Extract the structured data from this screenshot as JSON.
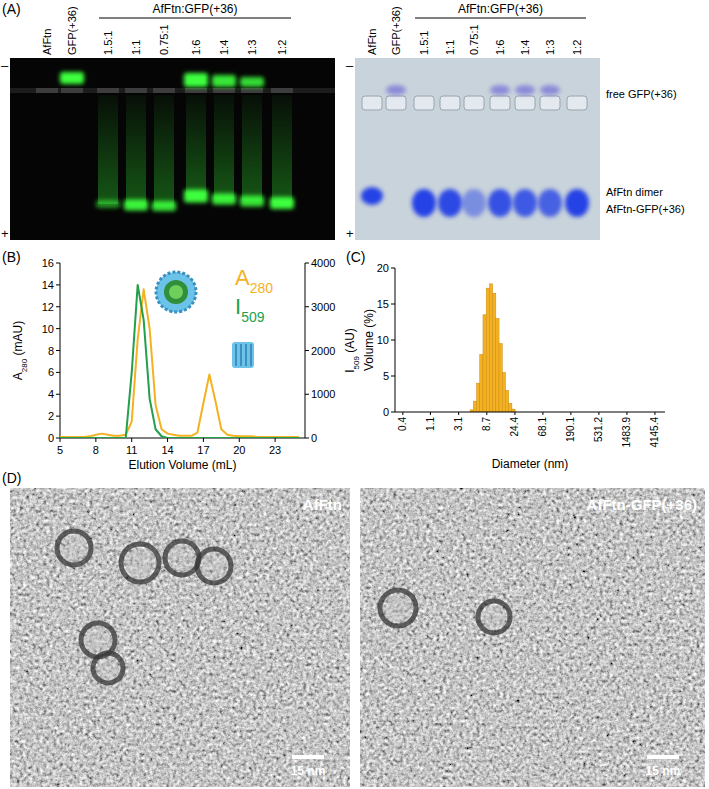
{
  "panel_labels": [
    "(A)",
    "(B)",
    "(C)",
    "(D)"
  ],
  "gels": {
    "lanes": [
      "AfFtn",
      "GFP(+36)",
      "1.5:1",
      "1:1",
      "0.75:1",
      "1:6",
      "1:4",
      "1:3",
      "1:2"
    ],
    "group_label": "AfFtn:GFP(+36)",
    "poles": [
      "–",
      "+"
    ],
    "band_labels": [
      "free GFP(+36)",
      "AfFtn dimer",
      "AfFtn-GFP(+36)"
    ]
  },
  "chart_data": [
    {
      "type": "line",
      "x_label": "Elution Volume (mL)",
      "y_label": "A280 (mAU)",
      "y2_label": "I509 (AU)",
      "x": [
        5,
        5.5,
        6,
        6.5,
        7,
        7.5,
        8,
        8.5,
        9,
        9.5,
        10,
        10.5,
        11,
        11.5,
        12,
        12.5,
        13,
        13.5,
        14,
        14.5,
        15,
        15.5,
        16,
        16.5,
        17,
        17.5,
        18,
        18.5,
        19,
        19.5,
        20,
        20.5,
        21,
        21.5,
        22,
        22.5,
        23,
        23.5,
        24,
        24.5,
        25
      ],
      "series": [
        {
          "name": "A280",
          "color": "#f4b223",
          "values": [
            0.1,
            0.1,
            0.1,
            0.1,
            0.1,
            0.15,
            0.3,
            0.4,
            0.3,
            0.2,
            0.2,
            0.3,
            1.5,
            9.0,
            13.6,
            10.0,
            3.0,
            0.8,
            0.4,
            0.3,
            0.2,
            0.2,
            0.2,
            0.5,
            3.2,
            5.8,
            3.4,
            0.8,
            0.3,
            0.2,
            0.15,
            0.15,
            0.15,
            0.1,
            0.1,
            0.1,
            0.1,
            0.1,
            0.1,
            0.1,
            0.1
          ]
        },
        {
          "name": "I509",
          "color": "#22a04b",
          "axis": "y2",
          "values": [
            0,
            0,
            0,
            0,
            0,
            0,
            0,
            0,
            0,
            0,
            0,
            0,
            1500,
            3500,
            2700,
            900,
            200,
            40,
            0,
            0,
            0,
            0,
            0,
            0,
            0,
            0,
            0,
            0,
            0,
            0,
            0,
            0,
            0,
            0,
            0,
            0,
            0,
            0,
            0,
            0,
            0
          ]
        }
      ],
      "xlim": [
        5,
        25.5
      ],
      "xticks": [
        5,
        8,
        11,
        14,
        17,
        20,
        23
      ],
      "ylim": [
        0,
        16
      ],
      "yticks": [
        0,
        2,
        4,
        6,
        8,
        10,
        12,
        14,
        16
      ],
      "y2lim": [
        0,
        4000
      ],
      "y2ticks": [
        0,
        1000,
        2000,
        3000,
        4000
      ],
      "legend": "top-right",
      "grid": false
    },
    {
      "type": "histogram",
      "x_label": "Diameter (nm)",
      "y_label": "Volume (%)",
      "color": "#f4b223",
      "bins": [
        4.72,
        5.31,
        5.97,
        6.72,
        7.56,
        8.51,
        9.57,
        10.77,
        12.11,
        13.63,
        15.33,
        17.25,
        19.4,
        21.83,
        24.56
      ],
      "values": [
        0.3,
        1.5,
        4,
        8,
        13.5,
        17.2,
        17.8,
        16.5,
        13,
        9.5,
        5.5,
        3,
        1.2,
        0.4
      ],
      "log": "x",
      "xlim": [
        0.3,
        6000
      ],
      "xticks": [
        0.4,
        1.1,
        3.1,
        8.7,
        24.4,
        68.1,
        190.1,
        531.2,
        1483.9,
        4145.4
      ],
      "ylim": [
        0,
        20
      ],
      "yticks": [
        0,
        5,
        10,
        15,
        20
      ],
      "grid": false
    }
  ],
  "micrographs": [
    {
      "label": "AfFtn",
      "scale_bar": "15 nm"
    },
    {
      "label": "AfFtn-GFP(+36)",
      "scale_bar": "15 nm"
    }
  ]
}
